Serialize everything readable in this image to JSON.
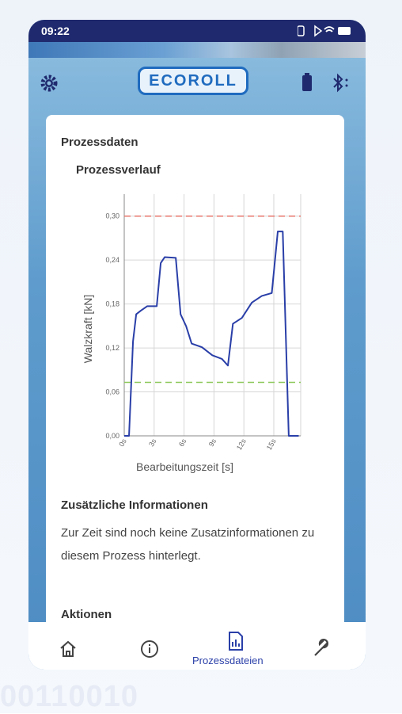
{
  "status_bar": {
    "time": "09:22"
  },
  "header": {
    "logo": "ECOROLL"
  },
  "card": {
    "section_title": "Prozessdaten",
    "info_title": "Zusätzliche Informationen",
    "info_text": "Zur Zeit sind noch keine Zusatzinformationen zu diesem Prozess hinterlegt.",
    "actions_title": "Aktionen"
  },
  "chart_data": {
    "type": "line",
    "title": "Prozessverlauf",
    "x_label": "Bearbeitungszeit [s]",
    "y_label": "Walzkraft [kN]",
    "xlim": [
      0,
      17.7
    ],
    "ylim": [
      0,
      0.33
    ],
    "xticks": [
      {
        "value": 0,
        "label": "0s"
      },
      {
        "value": 3,
        "label": "3s"
      },
      {
        "value": 6,
        "label": "6s"
      },
      {
        "value": 9,
        "label": "9s"
      },
      {
        "value": 12,
        "label": "12s"
      },
      {
        "value": 15,
        "label": "15s"
      }
    ],
    "yticks": [
      {
        "value": 0,
        "label": "0,00"
      },
      {
        "value": 0.06,
        "label": "0,06"
      },
      {
        "value": 0.12,
        "label": "0,12"
      },
      {
        "value": 0.18,
        "label": "0,18"
      },
      {
        "value": 0.24,
        "label": "0,24"
      },
      {
        "value": 0.3,
        "label": "0,30"
      }
    ],
    "grid": true,
    "thresholds": [
      {
        "value": 0.3,
        "color": "#e8776b"
      },
      {
        "value": 0.073,
        "color": "#8cc85a"
      }
    ],
    "series": [
      {
        "color": "#2a3fa8",
        "x": [
          0,
          0.48,
          0.88,
          1.2,
          1.67,
          2.3,
          3.26,
          3.66,
          4.06,
          5.17,
          5.65,
          6.2,
          6.76,
          7.8,
          8.83,
          9.8,
          10.4,
          10.9,
          11.8,
          12.8,
          13.8,
          14.8,
          15.4,
          15.9,
          16.5,
          17.5
        ],
        "values": [
          0,
          0,
          0.129,
          0.166,
          0.171,
          0.177,
          0.177,
          0.236,
          0.244,
          0.243,
          0.166,
          0.15,
          0.126,
          0.121,
          0.11,
          0.105,
          0.096,
          0.153,
          0.161,
          0.182,
          0.191,
          0.195,
          0.279,
          0.279,
          0,
          0
        ]
      }
    ]
  },
  "nav": {
    "active_label": "Prozessdateien"
  },
  "background_digits": "00110010"
}
